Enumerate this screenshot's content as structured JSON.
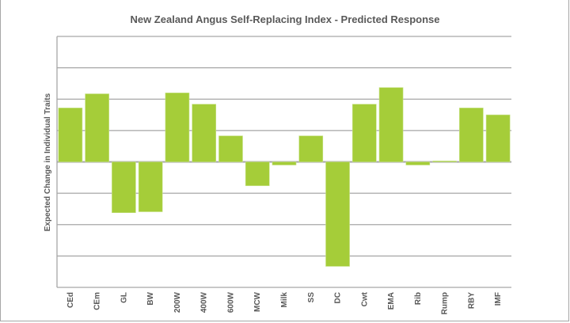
{
  "chart_data": {
    "type": "bar",
    "title": "New Zealand Angus Self-Replacing Index - Predicted Response",
    "xlabel": "",
    "ylabel": "Expected Change in Individual Traits",
    "categories": [
      "CEd",
      "CEm",
      "GL",
      "BW",
      "200W",
      "400W",
      "600W",
      "MCW",
      "Milk",
      "SS",
      "DC",
      "Cwt",
      "EMA",
      "Rib",
      "Rump",
      "RBY",
      "IMF"
    ],
    "values": [
      1.72,
      2.17,
      -1.62,
      -1.59,
      2.2,
      1.84,
      0.83,
      -0.76,
      -0.1,
      0.83,
      -3.33,
      1.84,
      2.37,
      -0.1,
      0.03,
      1.72,
      1.5
    ],
    "ylim": [
      -4,
      4
    ],
    "gridline_step": 1,
    "grid": true,
    "legend": "none",
    "bar_color": "#a5cd39",
    "grid_color": "#a6a6a6"
  }
}
